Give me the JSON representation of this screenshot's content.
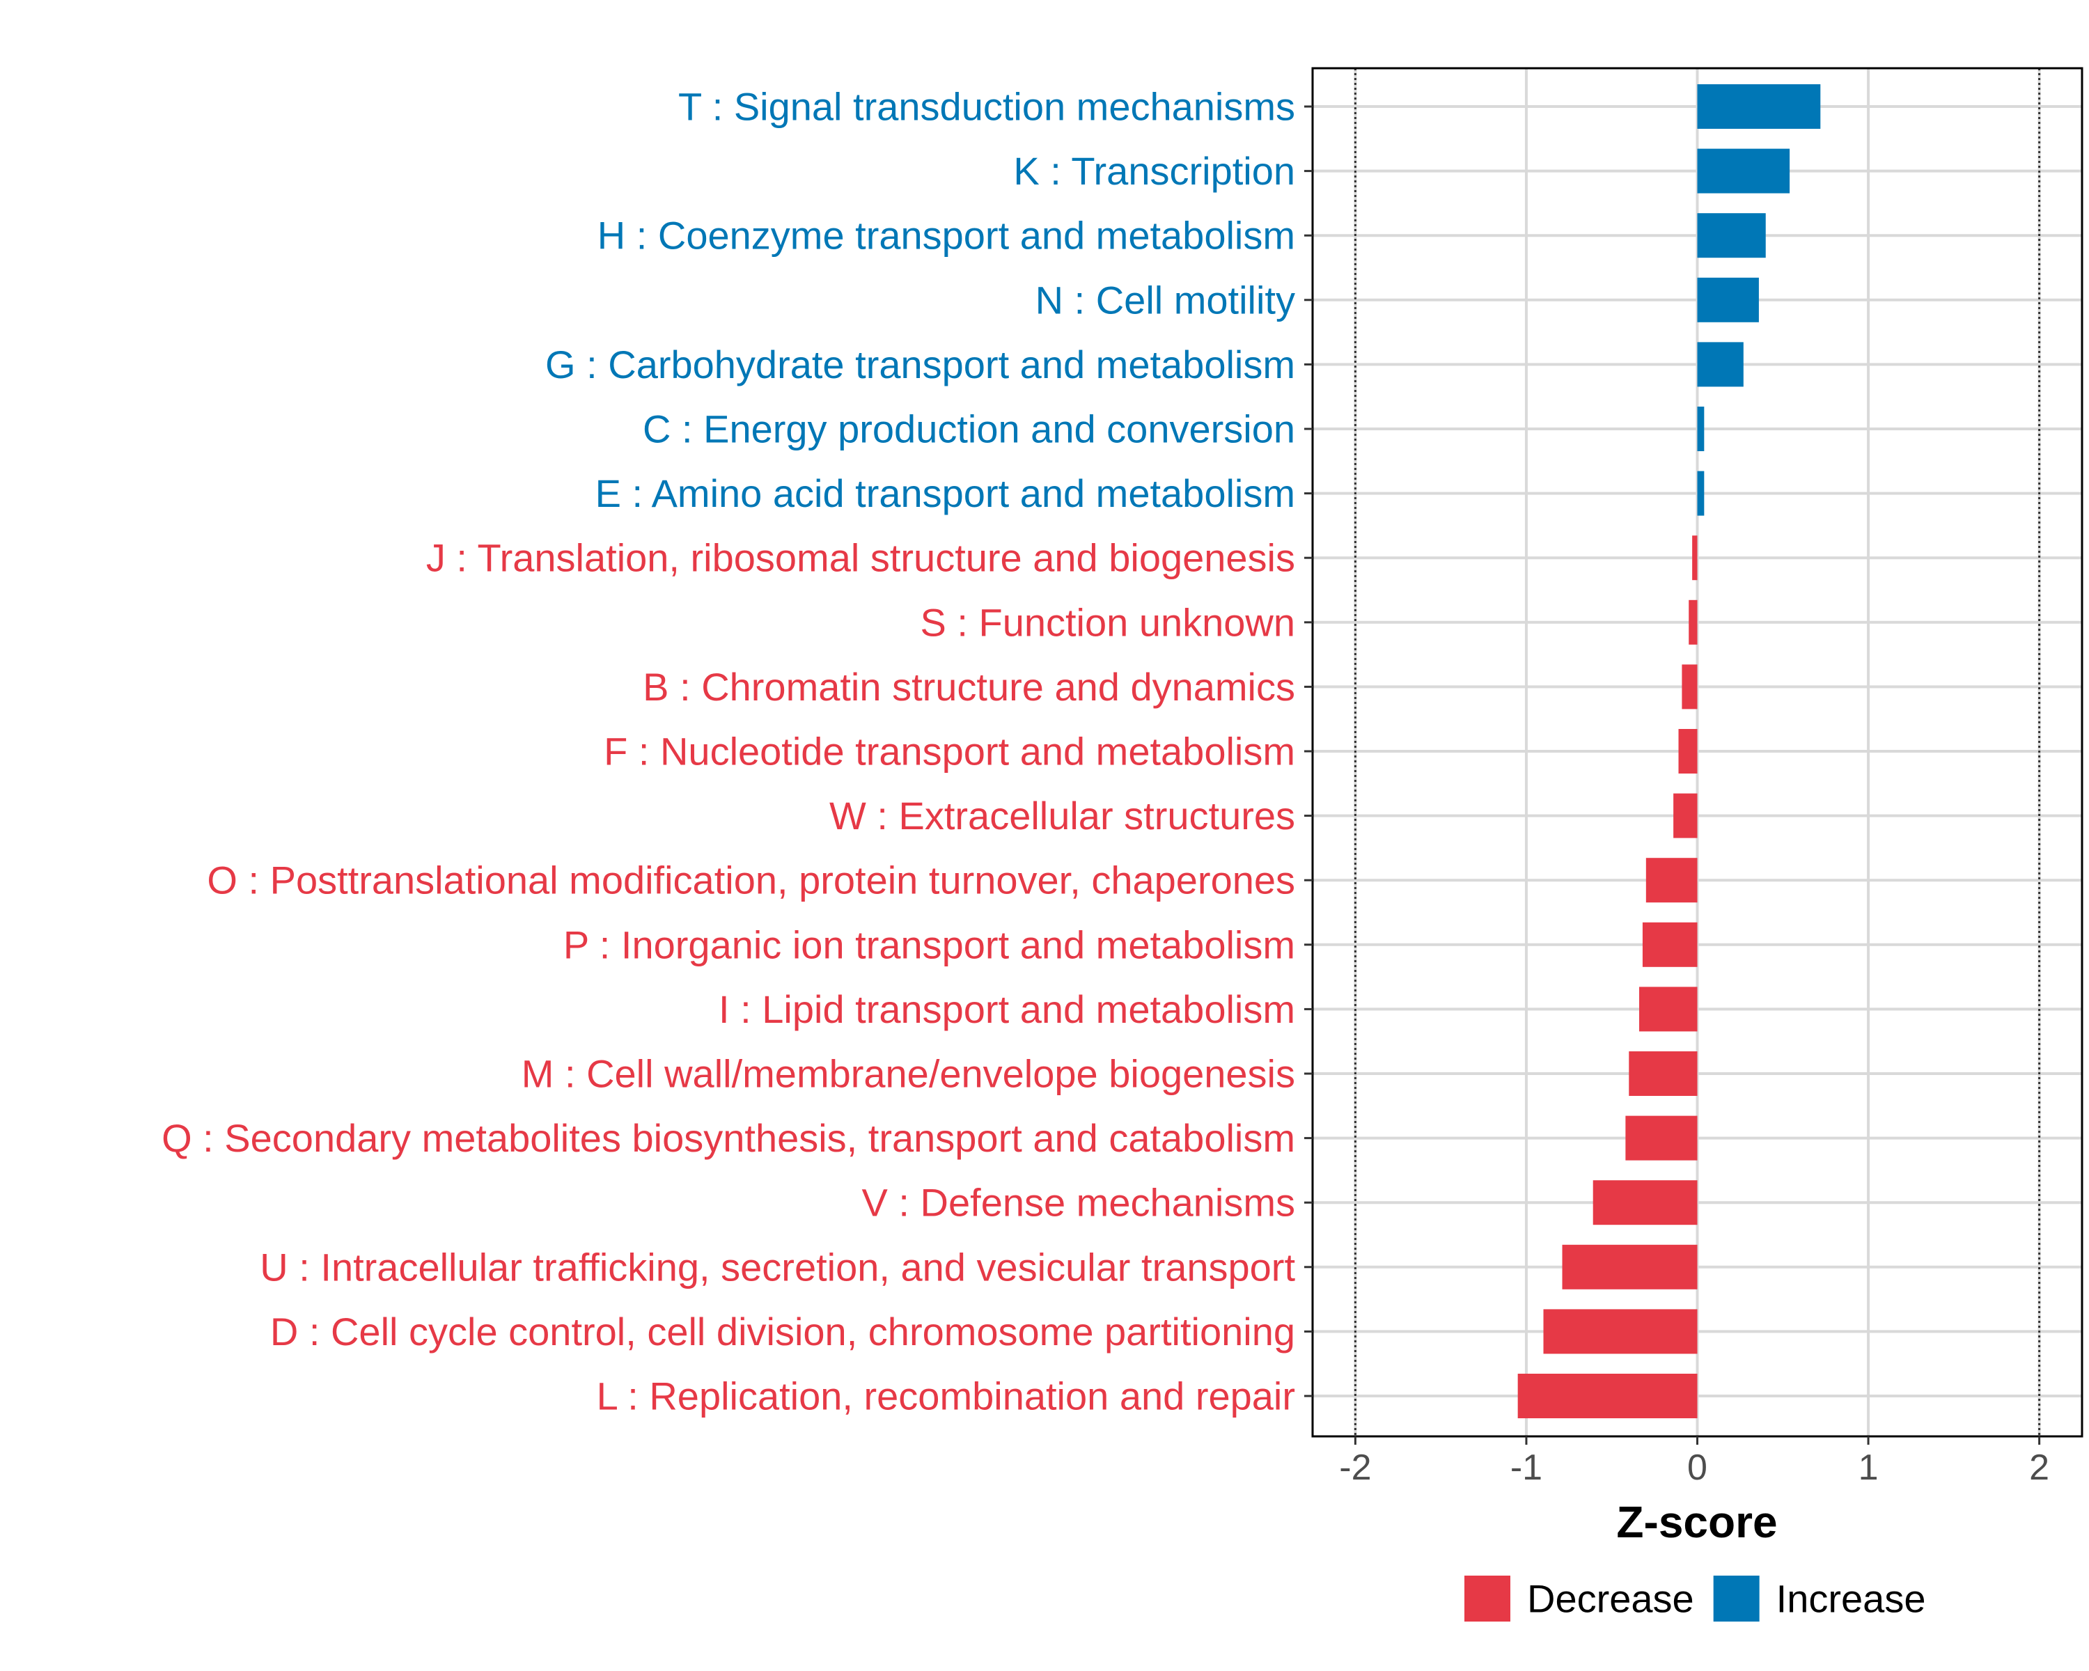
{
  "chart_data": {
    "type": "bar",
    "orientation": "horizontal",
    "xlabel": "Z-score",
    "xlim": [
      -2.25,
      2.25
    ],
    "x_ticks": [
      -2,
      -1,
      0,
      1,
      2
    ],
    "x_tick_labels": [
      "-2",
      "-1",
      "0",
      "1",
      "2"
    ],
    "reference_lines": [
      -2,
      2
    ],
    "grid": true,
    "legend_position": "bottom",
    "colors": {
      "Decrease": "#e63946",
      "Increase": "#0077b6"
    },
    "legend": [
      {
        "label": "Decrease",
        "color": "#e63946"
      },
      {
        "label": "Increase",
        "color": "#0077b6"
      }
    ],
    "categories": [
      "T : Signal transduction mechanisms",
      "K : Transcription",
      "H : Coenzyme transport and metabolism",
      "N : Cell motility",
      "G : Carbohydrate transport and metabolism",
      "C : Energy production and conversion",
      "E : Amino acid transport and metabolism",
      "J : Translation, ribosomal structure and biogenesis",
      "S : Function unknown",
      "B : Chromatin structure and dynamics",
      "F : Nucleotide transport and metabolism",
      "W : Extracellular structures",
      "O : Posttranslational modification, protein turnover, chaperones",
      "P : Inorganic ion transport and metabolism",
      "I : Lipid transport and metabolism",
      "M : Cell wall/membrane/envelope biogenesis",
      "Q : Secondary metabolites biosynthesis, transport and catabolism",
      "V : Defense mechanisms",
      "U : Intracellular trafficking, secretion, and vesicular transport",
      "D : Cell cycle control, cell division, chromosome partitioning",
      "L : Replication, recombination and repair"
    ],
    "values": [
      0.72,
      0.54,
      0.4,
      0.36,
      0.27,
      0.04,
      0.04,
      -0.03,
      -0.05,
      -0.09,
      -0.11,
      -0.14,
      -0.3,
      -0.32,
      -0.34,
      -0.4,
      -0.42,
      -0.61,
      -0.79,
      -0.9,
      -1.05
    ],
    "groups": [
      "Increase",
      "Increase",
      "Increase",
      "Increase",
      "Increase",
      "Increase",
      "Increase",
      "Decrease",
      "Decrease",
      "Decrease",
      "Decrease",
      "Decrease",
      "Decrease",
      "Decrease",
      "Decrease",
      "Decrease",
      "Decrease",
      "Decrease",
      "Decrease",
      "Decrease",
      "Decrease"
    ]
  }
}
